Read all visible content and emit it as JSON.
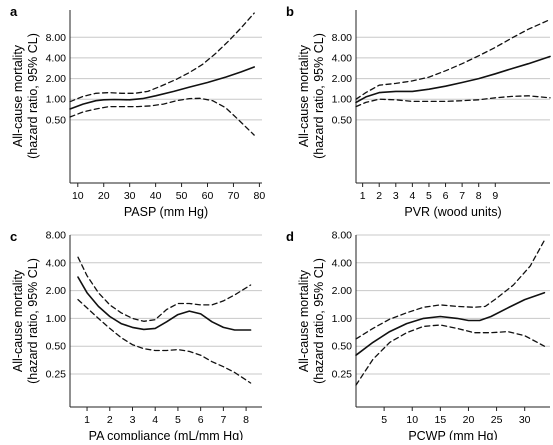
{
  "chart_data": [
    {
      "type": "line",
      "panel_label": "a",
      "ylabel": [
        "All-cause mortality",
        "(hazard ratio, 95% CL)"
      ],
      "xlabel": "PASP (mm Hg)",
      "y_scale": "log",
      "ylim": [
        0.06,
        20
      ],
      "yticks": [
        0.5,
        1,
        2,
        4,
        8
      ],
      "ytick_labels": [
        "0.50",
        "1.00",
        "2.00",
        "4.00",
        "8.00"
      ],
      "xlim": [
        7,
        81
      ],
      "xticks": [
        10,
        20,
        30,
        40,
        50,
        60,
        70,
        80
      ],
      "xtick_labels": [
        "10",
        "20",
        "30",
        "40",
        "50",
        "60",
        "70",
        "80"
      ],
      "series": [
        {
          "role": "estimate",
          "x": [
            7,
            12,
            17,
            20,
            24,
            30,
            35,
            40,
            47,
            53,
            60,
            67,
            73,
            78
          ],
          "y": [
            0.72,
            0.85,
            0.95,
            0.98,
            0.99,
            0.98,
            1.02,
            1.12,
            1.3,
            1.5,
            1.75,
            2.1,
            2.5,
            2.95
          ]
        },
        {
          "role": "upper_ci",
          "x": [
            7,
            12,
            17,
            22,
            27,
            32,
            37,
            42,
            48,
            53,
            58,
            63,
            68,
            73,
            78
          ],
          "y": [
            0.92,
            1.1,
            1.22,
            1.25,
            1.22,
            1.22,
            1.3,
            1.55,
            1.95,
            2.45,
            3.2,
            4.6,
            7.0,
            11.0,
            18.0
          ]
        },
        {
          "role": "lower_ci",
          "x": [
            7,
            12,
            17,
            22,
            28,
            33,
            38,
            43,
            48,
            53,
            57,
            62,
            67,
            72,
            78
          ],
          "y": [
            0.55,
            0.65,
            0.72,
            0.78,
            0.78,
            0.78,
            0.8,
            0.85,
            0.95,
            1.02,
            1.03,
            0.95,
            0.75,
            0.5,
            0.3
          ]
        }
      ]
    },
    {
      "type": "line",
      "panel_label": "b",
      "ylabel": [
        "All-cause mortality",
        "(hazard ratio, 95% CL)"
      ],
      "xlabel": "PVR (wood units)",
      "y_scale": "log",
      "ylim": [
        0.06,
        20
      ],
      "yticks": [
        0.5,
        1,
        2,
        4,
        8
      ],
      "ytick_labels": [
        "0.50",
        "1.00",
        "2.00",
        "4.00",
        "8.00"
      ],
      "xlim": [
        0.6,
        12.3
      ],
      "xticks": [
        1,
        2,
        3,
        4,
        5,
        6,
        7,
        8,
        9
      ],
      "xtick_labels": [
        "1",
        "2",
        "3",
        "4",
        "5",
        "6",
        "7",
        "8",
        "9"
      ],
      "series": [
        {
          "role": "estimate",
          "x": [
            0.6,
            1.2,
            2,
            3,
            4,
            5,
            6,
            7,
            8,
            9,
            10,
            11,
            12.3
          ],
          "y": [
            0.9,
            1.08,
            1.25,
            1.3,
            1.3,
            1.4,
            1.55,
            1.75,
            2.0,
            2.35,
            2.8,
            3.3,
            4.2
          ]
        },
        {
          "role": "upper_ci",
          "x": [
            0.6,
            1.2,
            2,
            3,
            4,
            5,
            6,
            7,
            8,
            9,
            10,
            11,
            12.3
          ],
          "y": [
            1.0,
            1.25,
            1.6,
            1.7,
            1.85,
            2.1,
            2.6,
            3.3,
            4.3,
            5.7,
            7.8,
            10.5,
            14.5
          ]
        },
        {
          "role": "lower_ci",
          "x": [
            0.6,
            1.2,
            2,
            3,
            4,
            5,
            6,
            7,
            8,
            9,
            10,
            11,
            12.3
          ],
          "y": [
            0.78,
            0.9,
            1.0,
            0.98,
            0.93,
            0.93,
            0.93,
            0.95,
            0.98,
            1.05,
            1.1,
            1.12,
            1.05
          ]
        }
      ]
    },
    {
      "type": "line",
      "panel_label": "c",
      "ylabel": [
        "All-cause mortality",
        "(hazard ratio, 95% CL)"
      ],
      "xlabel": "PA compliance (mL/mm Hg)",
      "y_scale": "log",
      "ylim": [
        0.11,
        8
      ],
      "yticks": [
        0.25,
        0.5,
        1,
        2,
        4,
        8
      ],
      "ytick_labels": [
        "0.25",
        "0.50",
        "1.00",
        "2.00",
        "4.00",
        "8.00"
      ],
      "xlim": [
        0.25,
        8.7
      ],
      "xticks": [
        1,
        2,
        3,
        4,
        5,
        6,
        7,
        8
      ],
      "xtick_labels": [
        "1",
        "2",
        "3",
        "4",
        "5",
        "6",
        "7",
        "8"
      ],
      "series": [
        {
          "role": "estimate",
          "x": [
            0.6,
            1,
            1.5,
            2,
            2.5,
            3,
            3.5,
            4,
            4.5,
            5,
            5.5,
            6,
            6.5,
            7,
            7.5,
            8.2
          ],
          "y": [
            2.8,
            1.9,
            1.35,
            1.05,
            0.88,
            0.8,
            0.76,
            0.78,
            0.92,
            1.1,
            1.2,
            1.12,
            0.92,
            0.8,
            0.75,
            0.75
          ]
        },
        {
          "role": "upper_ci",
          "x": [
            0.6,
            1,
            1.5,
            2,
            2.5,
            3,
            3.5,
            4,
            4.5,
            5,
            5.5,
            6,
            6.5,
            7,
            7.5,
            8.2
          ],
          "y": [
            4.6,
            2.9,
            1.9,
            1.4,
            1.15,
            1.0,
            0.93,
            0.97,
            1.25,
            1.45,
            1.45,
            1.4,
            1.4,
            1.55,
            1.8,
            2.3
          ]
        },
        {
          "role": "lower_ci",
          "x": [
            0.6,
            1,
            1.5,
            2,
            2.5,
            3,
            3.5,
            4,
            4.5,
            5,
            5.5,
            6,
            6.5,
            7,
            7.5,
            8.2
          ],
          "y": [
            1.6,
            1.3,
            1.0,
            0.78,
            0.62,
            0.52,
            0.47,
            0.45,
            0.45,
            0.46,
            0.44,
            0.4,
            0.34,
            0.3,
            0.26,
            0.2
          ]
        }
      ]
    },
    {
      "type": "line",
      "panel_label": "d",
      "ylabel": [
        "All-cause mortality",
        "(hazard ratio, 95% CL)"
      ],
      "xlabel": "PCWP (mm Hg)",
      "y_scale": "log",
      "ylim": [
        0.11,
        8
      ],
      "yticks": [
        0.25,
        0.5,
        1,
        2,
        4,
        8
      ],
      "ytick_labels": [
        "0.25",
        "0.50",
        "1.00",
        "2.00",
        "4.00",
        "8.00"
      ],
      "xlim": [
        0,
        34.5
      ],
      "xticks": [
        5,
        10,
        15,
        20,
        25,
        30
      ],
      "xtick_labels": [
        "5",
        "10",
        "15",
        "20",
        "25",
        "30"
      ],
      "series": [
        {
          "role": "estimate",
          "x": [
            0,
            3,
            6,
            9,
            12,
            15,
            18,
            20,
            22,
            24,
            27,
            30,
            33.5
          ],
          "y": [
            0.4,
            0.55,
            0.72,
            0.88,
            1.0,
            1.05,
            1.0,
            0.95,
            0.95,
            1.05,
            1.3,
            1.6,
            1.9
          ]
        },
        {
          "role": "upper_ci",
          "x": [
            0,
            3,
            6,
            9,
            12,
            15,
            18,
            21,
            23,
            25,
            28,
            31,
            33.5
          ],
          "y": [
            0.6,
            0.78,
            0.98,
            1.15,
            1.32,
            1.4,
            1.35,
            1.32,
            1.35,
            1.65,
            2.3,
            3.7,
            7.0
          ]
        },
        {
          "role": "lower_ci",
          "x": [
            0,
            3,
            6,
            9,
            12,
            15,
            18,
            21,
            24,
            27,
            30,
            33.5
          ],
          "y": [
            0.19,
            0.36,
            0.55,
            0.7,
            0.82,
            0.85,
            0.78,
            0.7,
            0.7,
            0.72,
            0.65,
            0.5
          ]
        }
      ]
    }
  ]
}
